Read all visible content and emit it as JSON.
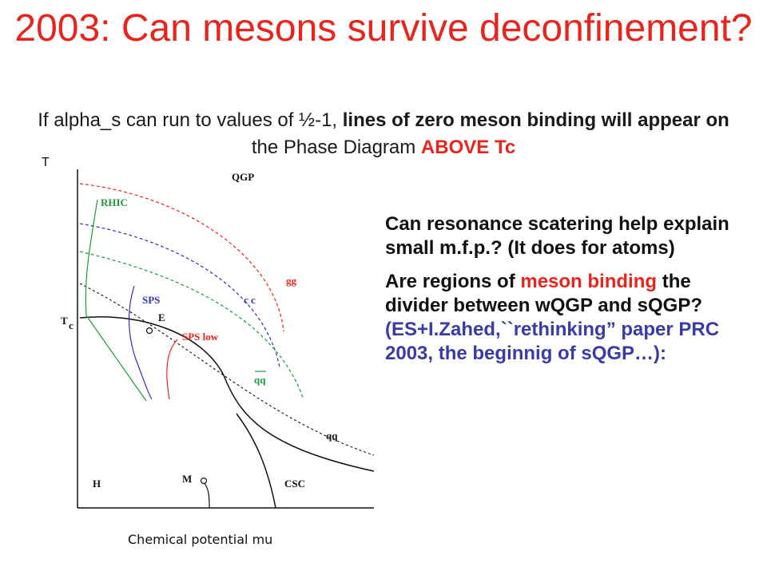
{
  "title": "2003:  Can mesons survive deconfinement?",
  "subtitle": {
    "p1": "If alpha_s can run to values of  ½-1, ",
    "p2": "lines of zero meson binding will appear on",
    "p3": " the Phase Diagram ",
    "p4": "ABOVE Tc"
  },
  "diagram": {
    "y_axis_label": "T",
    "x_axis_label": "Chemical potential mu",
    "labels": {
      "qgp": "QGP",
      "rhic": "RHIC",
      "gg": "gg",
      "sps": "SPS",
      "cc": "c c",
      "tc": "T",
      "tc_sub": "c",
      "e": "E",
      "sps_low": "SPS low",
      "qqbar": "qq",
      "qq": "qq",
      "h": "H",
      "m": "M",
      "csc": "CSC"
    },
    "colors": {
      "red": "#e8241e",
      "green": "#1e9a3c",
      "blue": "#3030c0",
      "black": "#111111"
    }
  },
  "notes": {
    "q1": "Can resonance scatering help explain small m.f.p.? (It does for atoms)",
    "q2_a": "Are regions of ",
    "q2_b": "meson binding",
    "q2_c": " the divider between wQGP and sQGP?",
    "q2_d": " (ES+I.Zahed,``rethinking” paper PRC 2003, the beginnig of sQGP…):"
  }
}
